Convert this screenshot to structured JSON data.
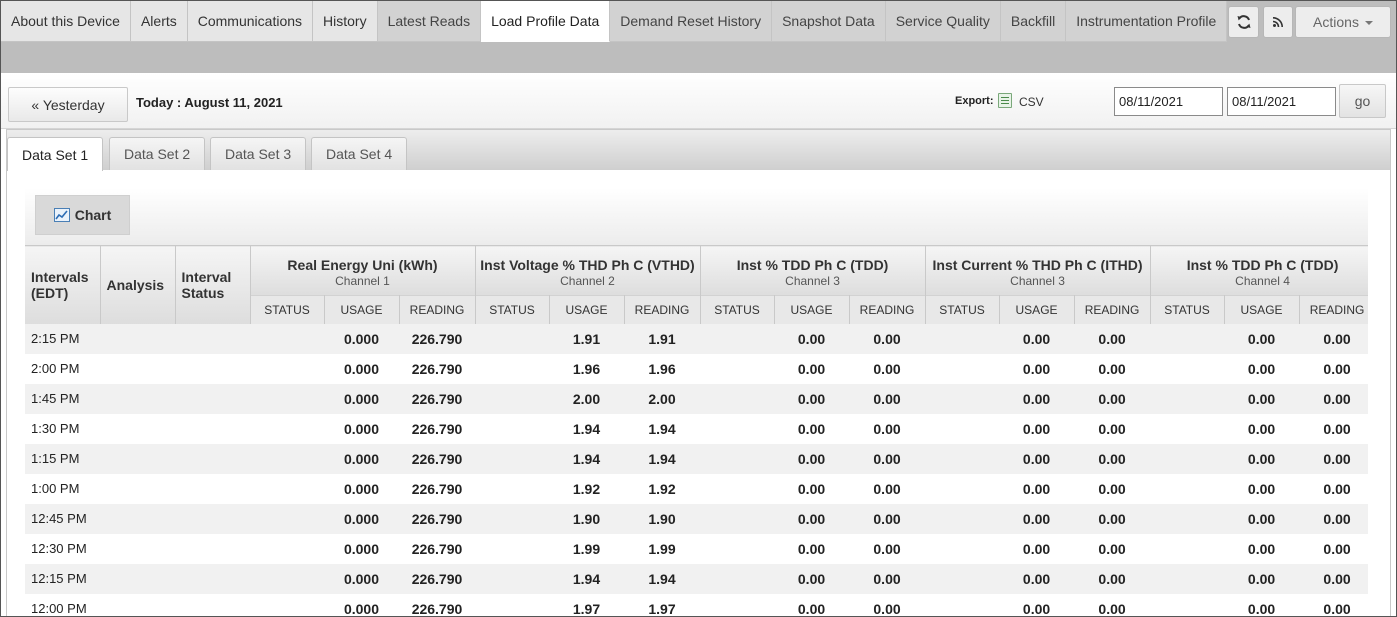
{
  "top_tabs": [
    {
      "label": "About this Device",
      "state": "normal"
    },
    {
      "label": "Alerts",
      "state": "normal"
    },
    {
      "label": "Communications",
      "state": "normal"
    },
    {
      "label": "History",
      "state": "normal"
    },
    {
      "label": "Latest Reads",
      "state": "dim"
    },
    {
      "label": "Load Profile Data",
      "state": "active"
    },
    {
      "label": "Demand Reset History",
      "state": "dim"
    },
    {
      "label": "Snapshot Data",
      "state": "dim"
    },
    {
      "label": "Service Quality",
      "state": "dim"
    },
    {
      "label": "Backfill",
      "state": "dim"
    },
    {
      "label": "Instrumentation Profile",
      "state": "dim"
    }
  ],
  "actions_label": "Actions",
  "toolbar": {
    "yesterday_label": "« Yesterday",
    "today_label": "Today : August 11, 2021",
    "export_label": "Export:",
    "csv_label": "CSV",
    "date_from": "08/11/2021",
    "date_to": "08/11/2021",
    "go_label": "go"
  },
  "dataset_tabs": [
    {
      "label": "Data Set 1",
      "active": true
    },
    {
      "label": "Data Set 2",
      "active": false
    },
    {
      "label": "Data Set 3",
      "active": false
    },
    {
      "label": "Data Set 4",
      "active": false
    }
  ],
  "chart_button_label": "Chart",
  "table": {
    "fixed_headers": {
      "intervals": "Intervals (EDT)",
      "analysis": "Analysis",
      "interval_status": "Interval Status"
    },
    "groups": [
      {
        "title": "Real Energy Uni (kWh)",
        "channel": "Channel 1"
      },
      {
        "title": "Inst Voltage % THD Ph C (VTHD)",
        "channel": "Channel 2"
      },
      {
        "title": "Inst % TDD Ph C (TDD)",
        "channel": "Channel 3"
      },
      {
        "title": "Inst Current % THD Ph C (ITHD)",
        "channel": "Channel 3"
      },
      {
        "title": "Inst % TDD Ph C (TDD)",
        "channel": "Channel 4"
      }
    ],
    "sub_headers": [
      "STATUS",
      "USAGE",
      "READING"
    ],
    "rows": [
      {
        "time": "2:15 PM",
        "cells": [
          "",
          "0.000",
          "226.790",
          "",
          "1.91",
          "1.91",
          "",
          "0.00",
          "0.00",
          "",
          "0.00",
          "0.00",
          "",
          "0.00",
          "0.00"
        ]
      },
      {
        "time": "2:00 PM",
        "cells": [
          "",
          "0.000",
          "226.790",
          "",
          "1.96",
          "1.96",
          "",
          "0.00",
          "0.00",
          "",
          "0.00",
          "0.00",
          "",
          "0.00",
          "0.00"
        ]
      },
      {
        "time": "1:45 PM",
        "cells": [
          "",
          "0.000",
          "226.790",
          "",
          "2.00",
          "2.00",
          "",
          "0.00",
          "0.00",
          "",
          "0.00",
          "0.00",
          "",
          "0.00",
          "0.00"
        ]
      },
      {
        "time": "1:30 PM",
        "cells": [
          "",
          "0.000",
          "226.790",
          "",
          "1.94",
          "1.94",
          "",
          "0.00",
          "0.00",
          "",
          "0.00",
          "0.00",
          "",
          "0.00",
          "0.00"
        ]
      },
      {
        "time": "1:15 PM",
        "cells": [
          "",
          "0.000",
          "226.790",
          "",
          "1.94",
          "1.94",
          "",
          "0.00",
          "0.00",
          "",
          "0.00",
          "0.00",
          "",
          "0.00",
          "0.00"
        ]
      },
      {
        "time": "1:00 PM",
        "cells": [
          "",
          "0.000",
          "226.790",
          "",
          "1.92",
          "1.92",
          "",
          "0.00",
          "0.00",
          "",
          "0.00",
          "0.00",
          "",
          "0.00",
          "0.00"
        ]
      },
      {
        "time": "12:45 PM",
        "cells": [
          "",
          "0.000",
          "226.790",
          "",
          "1.90",
          "1.90",
          "",
          "0.00",
          "0.00",
          "",
          "0.00",
          "0.00",
          "",
          "0.00",
          "0.00"
        ]
      },
      {
        "time": "12:30 PM",
        "cells": [
          "",
          "0.000",
          "226.790",
          "",
          "1.99",
          "1.99",
          "",
          "0.00",
          "0.00",
          "",
          "0.00",
          "0.00",
          "",
          "0.00",
          "0.00"
        ]
      },
      {
        "time": "12:15 PM",
        "cells": [
          "",
          "0.000",
          "226.790",
          "",
          "1.94",
          "1.94",
          "",
          "0.00",
          "0.00",
          "",
          "0.00",
          "0.00",
          "",
          "0.00",
          "0.00"
        ]
      },
      {
        "time": "12:00 PM",
        "cells": [
          "",
          "0.000",
          "226.790",
          "",
          "1.97",
          "1.97",
          "",
          "0.00",
          "0.00",
          "",
          "0.00",
          "0.00",
          "",
          "0.00",
          "0.00"
        ]
      }
    ]
  }
}
